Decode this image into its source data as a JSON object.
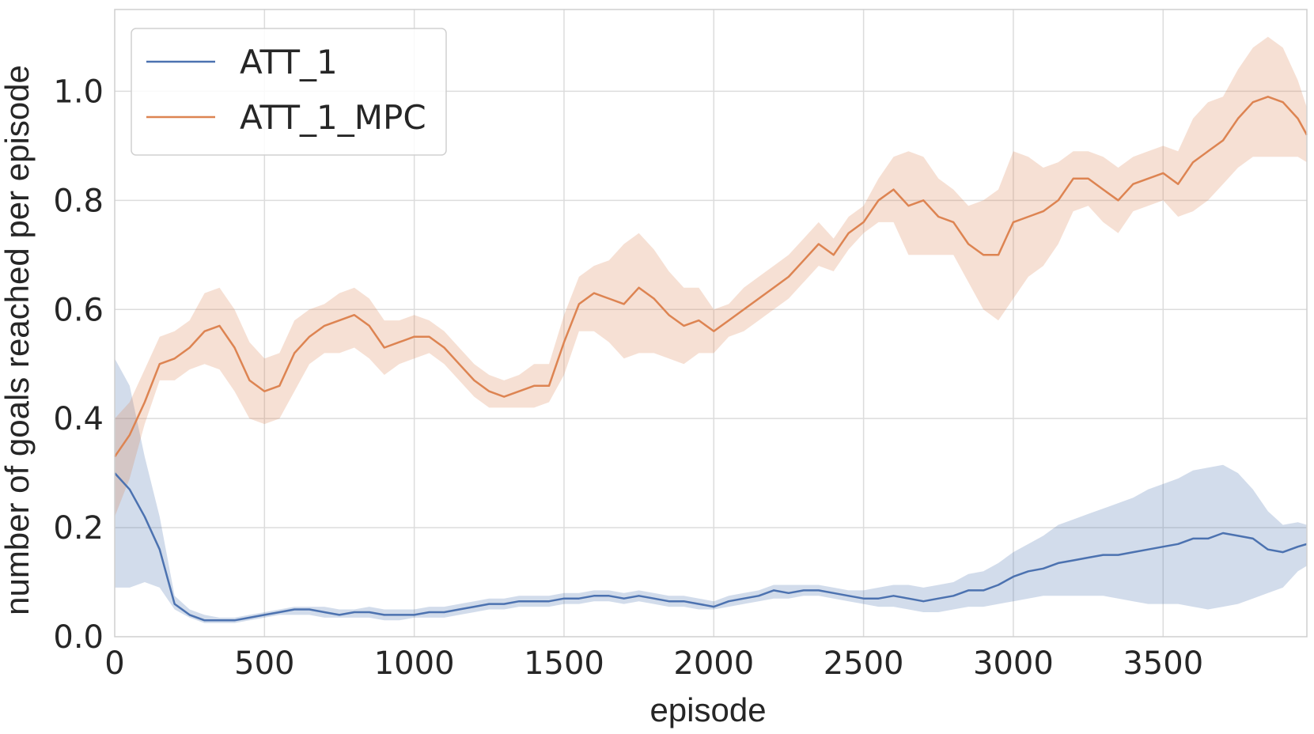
{
  "chart_data": {
    "type": "line",
    "xlabel": "episode",
    "ylabel": "number of goals reached per episode",
    "xlim": [
      0,
      3980
    ],
    "ylim": [
      0,
      1.15
    ],
    "xticks": [
      0,
      500,
      1000,
      1500,
      2000,
      2500,
      3000,
      3500
    ],
    "xtick_labels": [
      "0",
      "500",
      "1000",
      "1500",
      "2000",
      "2500",
      "3000",
      "3500"
    ],
    "yticks": [
      0.0,
      0.2,
      0.4,
      0.6,
      0.8,
      1.0
    ],
    "ytick_labels": [
      "0.0",
      "0.2",
      "0.4",
      "0.6",
      "0.8",
      "1.0"
    ],
    "grid": true,
    "legend_position": "top-left",
    "series": [
      {
        "name": "ATT_1",
        "color": "#4c72b0",
        "x": [
          0,
          50,
          100,
          150,
          200,
          250,
          300,
          350,
          400,
          450,
          500,
          550,
          600,
          650,
          700,
          750,
          800,
          850,
          900,
          950,
          1000,
          1050,
          1100,
          1150,
          1200,
          1250,
          1300,
          1350,
          1400,
          1450,
          1500,
          1550,
          1600,
          1650,
          1700,
          1750,
          1800,
          1850,
          1900,
          1950,
          2000,
          2050,
          2100,
          2150,
          2200,
          2250,
          2300,
          2350,
          2400,
          2450,
          2500,
          2550,
          2600,
          2650,
          2700,
          2750,
          2800,
          2850,
          2900,
          2950,
          3000,
          3050,
          3100,
          3150,
          3200,
          3250,
          3300,
          3350,
          3400,
          3450,
          3500,
          3550,
          3600,
          3650,
          3700,
          3750,
          3800,
          3850,
          3900,
          3950,
          3980
        ],
        "y": [
          0.3,
          0.27,
          0.22,
          0.16,
          0.06,
          0.04,
          0.03,
          0.03,
          0.03,
          0.035,
          0.04,
          0.045,
          0.05,
          0.05,
          0.045,
          0.04,
          0.045,
          0.045,
          0.04,
          0.04,
          0.04,
          0.045,
          0.045,
          0.05,
          0.055,
          0.06,
          0.06,
          0.065,
          0.065,
          0.065,
          0.07,
          0.07,
          0.075,
          0.075,
          0.07,
          0.075,
          0.07,
          0.065,
          0.065,
          0.06,
          0.055,
          0.065,
          0.07,
          0.075,
          0.085,
          0.08,
          0.085,
          0.085,
          0.08,
          0.075,
          0.07,
          0.07,
          0.075,
          0.07,
          0.065,
          0.07,
          0.075,
          0.085,
          0.085,
          0.095,
          0.11,
          0.12,
          0.125,
          0.135,
          0.14,
          0.145,
          0.15,
          0.15,
          0.155,
          0.16,
          0.165,
          0.17,
          0.18,
          0.18,
          0.19,
          0.185,
          0.18,
          0.16,
          0.155,
          0.165,
          0.17
        ],
        "lower": [
          0.09,
          0.09,
          0.1,
          0.09,
          0.05,
          0.035,
          0.025,
          0.025,
          0.025,
          0.03,
          0.035,
          0.04,
          0.04,
          0.04,
          0.035,
          0.035,
          0.035,
          0.035,
          0.03,
          0.03,
          0.035,
          0.035,
          0.035,
          0.04,
          0.045,
          0.05,
          0.05,
          0.055,
          0.055,
          0.055,
          0.06,
          0.06,
          0.065,
          0.065,
          0.06,
          0.065,
          0.06,
          0.055,
          0.055,
          0.05,
          0.05,
          0.055,
          0.06,
          0.065,
          0.07,
          0.07,
          0.075,
          0.075,
          0.07,
          0.065,
          0.06,
          0.055,
          0.055,
          0.05,
          0.045,
          0.045,
          0.05,
          0.055,
          0.055,
          0.06,
          0.065,
          0.07,
          0.075,
          0.075,
          0.075,
          0.075,
          0.075,
          0.07,
          0.065,
          0.06,
          0.06,
          0.06,
          0.055,
          0.05,
          0.055,
          0.06,
          0.07,
          0.08,
          0.09,
          0.12,
          0.13
        ],
        "upper": [
          0.51,
          0.46,
          0.33,
          0.22,
          0.075,
          0.05,
          0.04,
          0.035,
          0.035,
          0.04,
          0.045,
          0.05,
          0.055,
          0.055,
          0.055,
          0.05,
          0.05,
          0.055,
          0.05,
          0.05,
          0.05,
          0.055,
          0.055,
          0.06,
          0.065,
          0.07,
          0.07,
          0.075,
          0.075,
          0.075,
          0.08,
          0.08,
          0.085,
          0.085,
          0.08,
          0.085,
          0.08,
          0.075,
          0.075,
          0.07,
          0.065,
          0.075,
          0.08,
          0.085,
          0.095,
          0.095,
          0.095,
          0.095,
          0.09,
          0.085,
          0.085,
          0.09,
          0.095,
          0.095,
          0.09,
          0.095,
          0.1,
          0.115,
          0.12,
          0.135,
          0.155,
          0.17,
          0.185,
          0.205,
          0.215,
          0.225,
          0.235,
          0.245,
          0.255,
          0.27,
          0.28,
          0.29,
          0.305,
          0.31,
          0.315,
          0.3,
          0.27,
          0.23,
          0.205,
          0.21,
          0.205
        ]
      },
      {
        "name": "ATT_1_MPC",
        "color": "#dd8452",
        "x": [
          0,
          50,
          100,
          150,
          200,
          250,
          300,
          350,
          400,
          450,
          500,
          550,
          600,
          650,
          700,
          750,
          800,
          850,
          900,
          950,
          1000,
          1050,
          1100,
          1150,
          1200,
          1250,
          1300,
          1350,
          1400,
          1450,
          1500,
          1550,
          1600,
          1650,
          1700,
          1750,
          1800,
          1850,
          1900,
          1950,
          2000,
          2050,
          2100,
          2150,
          2200,
          2250,
          2300,
          2350,
          2400,
          2450,
          2500,
          2550,
          2600,
          2650,
          2700,
          2750,
          2800,
          2850,
          2900,
          2950,
          3000,
          3050,
          3100,
          3150,
          3200,
          3250,
          3300,
          3350,
          3400,
          3450,
          3500,
          3550,
          3600,
          3650,
          3700,
          3750,
          3800,
          3850,
          3900,
          3950,
          3980
        ],
        "y": [
          0.33,
          0.37,
          0.43,
          0.5,
          0.51,
          0.53,
          0.56,
          0.57,
          0.53,
          0.47,
          0.45,
          0.46,
          0.52,
          0.55,
          0.57,
          0.58,
          0.59,
          0.57,
          0.53,
          0.54,
          0.55,
          0.55,
          0.53,
          0.5,
          0.47,
          0.45,
          0.44,
          0.45,
          0.46,
          0.46,
          0.54,
          0.61,
          0.63,
          0.62,
          0.61,
          0.64,
          0.62,
          0.59,
          0.57,
          0.58,
          0.56,
          0.58,
          0.6,
          0.62,
          0.64,
          0.66,
          0.69,
          0.72,
          0.7,
          0.74,
          0.76,
          0.8,
          0.82,
          0.79,
          0.8,
          0.77,
          0.76,
          0.72,
          0.7,
          0.7,
          0.76,
          0.77,
          0.78,
          0.8,
          0.84,
          0.84,
          0.82,
          0.8,
          0.83,
          0.84,
          0.85,
          0.83,
          0.87,
          0.89,
          0.91,
          0.95,
          0.98,
          0.99,
          0.98,
          0.95,
          0.92
        ],
        "lower": [
          0.22,
          0.29,
          0.39,
          0.47,
          0.47,
          0.49,
          0.5,
          0.49,
          0.45,
          0.4,
          0.39,
          0.4,
          0.45,
          0.5,
          0.52,
          0.52,
          0.53,
          0.51,
          0.48,
          0.5,
          0.51,
          0.52,
          0.5,
          0.47,
          0.44,
          0.42,
          0.42,
          0.42,
          0.42,
          0.43,
          0.48,
          0.56,
          0.56,
          0.54,
          0.51,
          0.52,
          0.52,
          0.51,
          0.5,
          0.52,
          0.52,
          0.55,
          0.56,
          0.58,
          0.6,
          0.62,
          0.65,
          0.68,
          0.67,
          0.71,
          0.74,
          0.76,
          0.76,
          0.7,
          0.7,
          0.7,
          0.7,
          0.65,
          0.6,
          0.58,
          0.62,
          0.66,
          0.68,
          0.72,
          0.78,
          0.79,
          0.76,
          0.74,
          0.78,
          0.79,
          0.8,
          0.77,
          0.78,
          0.8,
          0.83,
          0.86,
          0.88,
          0.88,
          0.88,
          0.88,
          0.87
        ],
        "upper": [
          0.4,
          0.43,
          0.49,
          0.55,
          0.56,
          0.58,
          0.63,
          0.64,
          0.6,
          0.54,
          0.51,
          0.52,
          0.58,
          0.6,
          0.61,
          0.63,
          0.64,
          0.62,
          0.58,
          0.58,
          0.59,
          0.58,
          0.56,
          0.53,
          0.5,
          0.48,
          0.47,
          0.48,
          0.5,
          0.5,
          0.59,
          0.66,
          0.68,
          0.69,
          0.72,
          0.74,
          0.71,
          0.67,
          0.64,
          0.64,
          0.6,
          0.61,
          0.64,
          0.66,
          0.68,
          0.7,
          0.73,
          0.76,
          0.73,
          0.77,
          0.79,
          0.84,
          0.88,
          0.89,
          0.88,
          0.84,
          0.82,
          0.79,
          0.8,
          0.82,
          0.89,
          0.88,
          0.86,
          0.87,
          0.89,
          0.89,
          0.88,
          0.86,
          0.88,
          0.89,
          0.9,
          0.89,
          0.95,
          0.98,
          0.99,
          1.04,
          1.08,
          1.1,
          1.08,
          1.02,
          0.97
        ]
      }
    ]
  }
}
